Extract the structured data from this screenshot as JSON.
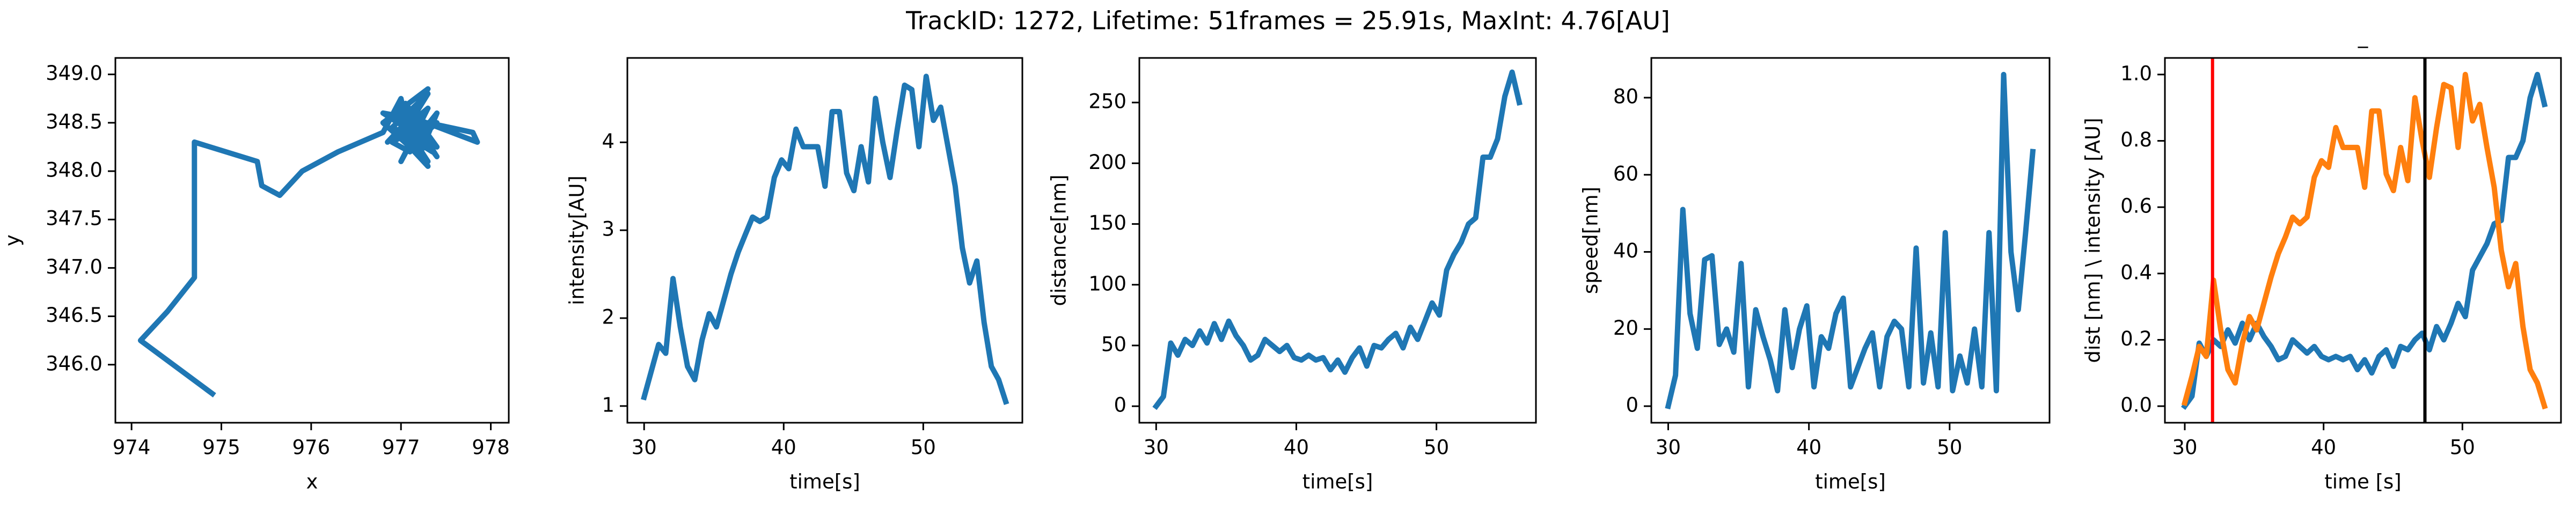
{
  "title": "TrackID: 1272, Lifetime: 51frames = 25.91s, MaxInt: 4.76[AU]",
  "chart_data": [
    {
      "type": "line",
      "xlabel": "x",
      "ylabel": "y",
      "x": [
        974.9,
        974.1,
        974.4,
        974.7,
        974.7,
        975.4,
        975.45,
        975.65,
        975.9,
        976.3,
        976.8,
        977.0,
        977.1,
        976.95,
        977.3,
        977.0,
        977.2,
        977.05,
        977.4,
        976.9,
        977.3,
        977.0,
        977.2,
        977.4,
        977.1,
        976.8,
        977.3,
        977.0,
        977.35,
        977.1,
        976.85,
        977.3,
        977.0,
        977.2,
        976.9,
        977.4,
        977.1,
        977.3,
        977.0,
        977.85,
        977.8,
        977.3,
        977.1,
        976.9,
        977.2,
        977.4,
        977.0,
        977.3,
        977.1,
        976.8,
        977.3
      ],
      "series": [
        {
          "color": "#1f77b4",
          "values": [
            345.7,
            346.25,
            346.55,
            346.9,
            348.3,
            348.1,
            347.85,
            347.75,
            348.0,
            348.2,
            348.4,
            348.75,
            348.3,
            348.6,
            348.1,
            348.5,
            348.2,
            348.7,
            348.25,
            348.45,
            348.8,
            348.35,
            348.15,
            348.6,
            348.25,
            348.5,
            348.85,
            348.4,
            348.2,
            348.55,
            348.3,
            348.65,
            348.1,
            348.45,
            348.35,
            348.5,
            348.25,
            348.05,
            348.6,
            348.3,
            348.4,
            348.5,
            348.2,
            348.3,
            348.45,
            348.15,
            348.65,
            348.35,
            348.55,
            348.6,
            348.3
          ]
        }
      ],
      "xlim": [
        973.82,
        978.2
      ],
      "xticks": [
        974,
        975,
        976,
        977,
        978
      ],
      "ylim": [
        345.4,
        349.17
      ],
      "yticks": [
        {
          "value": 346,
          "label": "346.0"
        },
        346.5,
        {
          "value": 347,
          "label": "347.0"
        },
        347.5,
        {
          "value": 348,
          "label": "348.0"
        },
        348.5,
        {
          "value": 349,
          "label": "349.0"
        }
      ]
    },
    {
      "type": "line",
      "xlabel": "time[s]",
      "ylabel": "intensity[AU]",
      "x": [
        30.0,
        30.52,
        31.04,
        31.55,
        32.07,
        32.59,
        33.11,
        33.63,
        34.15,
        34.66,
        35.18,
        35.7,
        36.22,
        36.74,
        37.25,
        37.77,
        38.29,
        38.81,
        39.33,
        39.85,
        40.36,
        40.88,
        41.4,
        41.92,
        42.44,
        42.96,
        43.47,
        43.99,
        44.51,
        45.03,
        45.55,
        46.07,
        46.58,
        47.1,
        47.62,
        48.14,
        48.66,
        49.18,
        49.69,
        50.21,
        50.73,
        51.25,
        51.77,
        52.29,
        52.8,
        53.32,
        53.84,
        54.36,
        54.88,
        55.4,
        55.91
      ],
      "series": [
        {
          "color": "#1f77b4",
          "values": [
            1.1,
            1.4,
            1.7,
            1.6,
            2.45,
            1.9,
            1.45,
            1.3,
            1.75,
            2.05,
            1.9,
            2.2,
            2.5,
            2.75,
            2.95,
            3.15,
            3.1,
            3.15,
            3.6,
            3.8,
            3.7,
            4.15,
            3.95,
            3.95,
            3.95,
            3.5,
            4.35,
            4.35,
            3.65,
            3.45,
            3.95,
            3.55,
            4.5,
            4.0,
            3.6,
            4.15,
            4.65,
            4.6,
            3.95,
            4.75,
            4.25,
            4.4,
            3.95,
            3.5,
            2.8,
            2.4,
            2.65,
            1.95,
            1.45,
            1.3,
            1.05
          ]
        }
      ],
      "xlim": [
        28.8,
        57.1
      ],
      "xticks": [
        30,
        40,
        50
      ],
      "ylim": [
        0.81,
        4.96
      ],
      "yticks": [
        1,
        2,
        3,
        4
      ]
    },
    {
      "type": "line",
      "xlabel": "time[s]",
      "ylabel": "distance[nm]",
      "x": [
        30.0,
        30.52,
        31.04,
        31.55,
        32.07,
        32.59,
        33.11,
        33.63,
        34.15,
        34.66,
        35.18,
        35.7,
        36.22,
        36.74,
        37.25,
        37.77,
        38.29,
        38.81,
        39.33,
        39.85,
        40.36,
        40.88,
        41.4,
        41.92,
        42.44,
        42.96,
        43.47,
        43.99,
        44.51,
        45.03,
        45.55,
        46.07,
        46.58,
        47.1,
        47.62,
        48.14,
        48.66,
        49.18,
        49.69,
        50.21,
        50.73,
        51.25,
        51.77,
        52.29,
        52.8,
        53.32,
        53.84,
        54.36,
        54.88,
        55.4,
        55.91
      ],
      "series": [
        {
          "color": "#1f77b4",
          "values": [
            0,
            8,
            52,
            42,
            55,
            50,
            62,
            52,
            68,
            55,
            70,
            58,
            50,
            38,
            42,
            55,
            50,
            45,
            50,
            40,
            38,
            42,
            38,
            40,
            30,
            38,
            28,
            40,
            48,
            33,
            50,
            48,
            55,
            60,
            48,
            65,
            55,
            70,
            85,
            75,
            112,
            125,
            135,
            150,
            155,
            205,
            205,
            220,
            255,
            275,
            250
          ]
        }
      ],
      "xlim": [
        28.8,
        57.1
      ],
      "xticks": [
        30,
        40,
        50
      ],
      "ylim": [
        -13.6,
        286.7
      ],
      "yticks": [
        0,
        50,
        100,
        150,
        200,
        250
      ]
    },
    {
      "type": "line",
      "xlabel": "time[s]",
      "ylabel": "speed[nm]",
      "x": [
        30.0,
        30.52,
        31.04,
        31.55,
        32.07,
        32.59,
        33.11,
        33.63,
        34.15,
        34.66,
        35.18,
        35.7,
        36.22,
        36.74,
        37.25,
        37.77,
        38.29,
        38.81,
        39.33,
        39.85,
        40.36,
        40.88,
        41.4,
        41.92,
        42.44,
        42.96,
        43.47,
        43.99,
        44.51,
        45.03,
        45.55,
        46.07,
        46.58,
        47.1,
        47.62,
        48.14,
        48.66,
        49.18,
        49.69,
        50.21,
        50.73,
        51.25,
        51.77,
        52.29,
        52.8,
        53.32,
        53.84,
        54.36,
        54.88,
        55.4,
        55.91
      ],
      "series": [
        {
          "color": "#1f77b4",
          "values": [
            0,
            8,
            51,
            24,
            15,
            38,
            39,
            16,
            20,
            14,
            37,
            5,
            25,
            18,
            12,
            4,
            25,
            10,
            20,
            26,
            5,
            18,
            15,
            24,
            28,
            5,
            10,
            15,
            19,
            5,
            18,
            22,
            20,
            5,
            41,
            6,
            19,
            5,
            45,
            4,
            13,
            6,
            20,
            5,
            45,
            4,
            86,
            40,
            25,
            45,
            66
          ]
        }
      ],
      "xlim": [
        28.8,
        57.1
      ],
      "xticks": [
        30,
        40,
        50
      ],
      "ylim": [
        -4.3,
        90.3
      ],
      "yticks": [
        0,
        20,
        40,
        60,
        80
      ]
    },
    {
      "type": "line",
      "title": "_",
      "xlabel": "time [s]",
      "ylabel": "dist [nm] \\ intensity [AU]",
      "x": [
        30.0,
        30.52,
        31.04,
        31.55,
        32.07,
        32.59,
        33.11,
        33.63,
        34.15,
        34.66,
        35.18,
        35.7,
        36.22,
        36.74,
        37.25,
        37.77,
        38.29,
        38.81,
        39.33,
        39.85,
        40.36,
        40.88,
        41.4,
        41.92,
        42.44,
        42.96,
        43.47,
        43.99,
        44.51,
        45.03,
        45.55,
        46.07,
        46.58,
        47.1,
        47.62,
        48.14,
        48.66,
        49.18,
        49.69,
        50.21,
        50.73,
        51.25,
        51.77,
        52.29,
        52.8,
        53.32,
        53.84,
        54.36,
        54.88,
        55.4,
        55.91
      ],
      "series": [
        {
          "color": "#1f77b4",
          "values": [
            0,
            0.03,
            0.19,
            0.15,
            0.2,
            0.18,
            0.23,
            0.19,
            0.25,
            0.2,
            0.25,
            0.21,
            0.18,
            0.14,
            0.15,
            0.2,
            0.18,
            0.16,
            0.18,
            0.15,
            0.14,
            0.15,
            0.14,
            0.15,
            0.11,
            0.14,
            0.1,
            0.15,
            0.17,
            0.12,
            0.18,
            0.17,
            0.2,
            0.22,
            0.17,
            0.24,
            0.2,
            0.25,
            0.31,
            0.27,
            0.41,
            0.45,
            0.49,
            0.55,
            0.56,
            0.75,
            0.75,
            0.8,
            0.93,
            1.0,
            0.91
          ]
        },
        {
          "color": "#ff7f0e",
          "values": [
            0.01,
            0.09,
            0.18,
            0.15,
            0.38,
            0.23,
            0.11,
            0.07,
            0.19,
            0.27,
            0.23,
            0.31,
            0.39,
            0.46,
            0.51,
            0.57,
            0.55,
            0.57,
            0.69,
            0.74,
            0.72,
            0.84,
            0.78,
            0.78,
            0.78,
            0.66,
            0.89,
            0.89,
            0.7,
            0.65,
            0.78,
            0.68,
            0.93,
            0.8,
            0.69,
            0.84,
            0.97,
            0.96,
            0.78,
            1.0,
            0.86,
            0.91,
            0.78,
            0.66,
            0.47,
            0.36,
            0.43,
            0.24,
            0.11,
            0.07,
            0
          ]
        }
      ],
      "vlines": [
        {
          "x": 32,
          "color": "#ff0000"
        },
        {
          "x": 47.3,
          "color": "#000000"
        }
      ],
      "xlim": [
        28.57,
        57.1
      ],
      "xticks": [
        30,
        40,
        50
      ],
      "ylim": [
        -0.05,
        1.05
      ],
      "yticks": [
        {
          "value": 0,
          "label": "0.0"
        },
        0.2,
        0.4,
        0.6,
        0.8,
        {
          "value": 1,
          "label": "1.0"
        }
      ]
    }
  ]
}
